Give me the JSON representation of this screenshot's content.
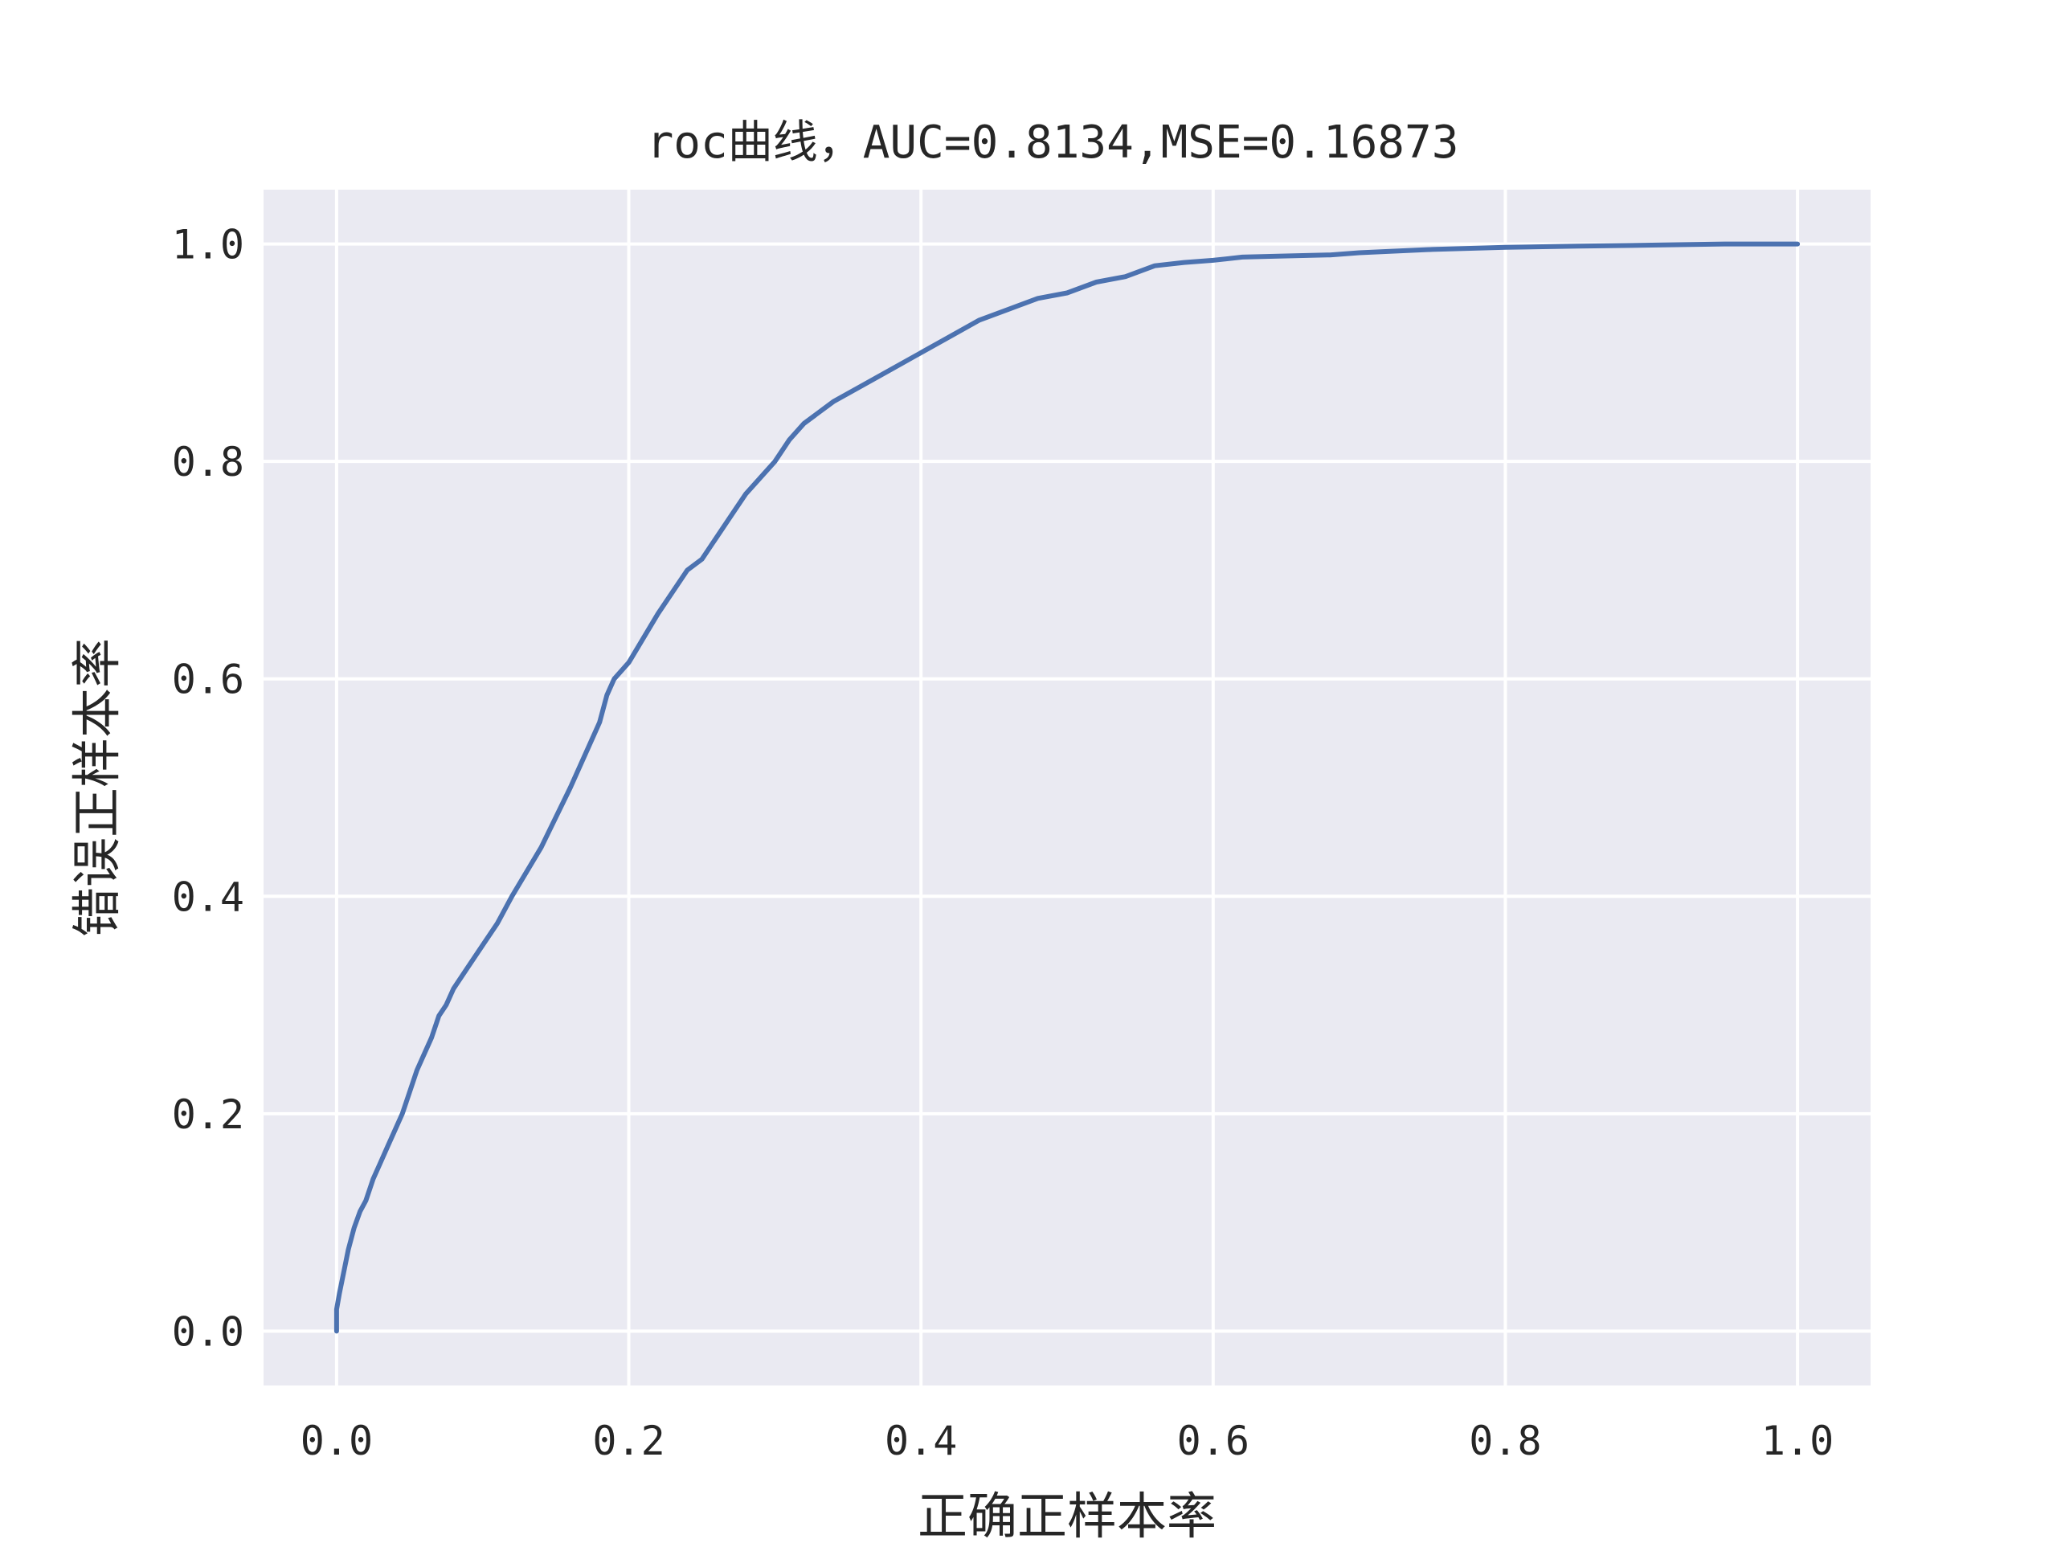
{
  "chart_data": {
    "type": "line",
    "title": "roc曲线，AUC=0.8134,MSE=0.16873",
    "xlabel": "正确正样本率",
    "ylabel": "错误正样本率",
    "xlim": [
      -0.05,
      1.05
    ],
    "ylim": [
      -0.05,
      1.05
    ],
    "xticks": [
      0.0,
      0.2,
      0.4,
      0.6,
      0.8,
      1.0
    ],
    "xtick_labels": [
      "0.0",
      "0.2",
      "0.4",
      "0.6",
      "0.8",
      "1.0"
    ],
    "yticks": [
      0.0,
      0.2,
      0.4,
      0.6,
      0.8,
      1.0
    ],
    "ytick_labels": [
      "0.0",
      "0.2",
      "0.4",
      "0.6",
      "0.8",
      "1.0"
    ],
    "grid": true,
    "legend": "none",
    "colors": {
      "background": "#eaeaf2",
      "grid": "#ffffff",
      "line": "#4c72b0"
    },
    "series": [
      {
        "x": [
          0.0,
          0.0,
          0.002,
          0.005,
          0.008,
          0.012,
          0.016,
          0.02,
          0.025,
          0.03,
          0.035,
          0.04,
          0.045,
          0.05,
          0.055,
          0.06,
          0.065,
          0.07,
          0.075,
          0.08,
          0.09,
          0.1,
          0.11,
          0.12,
          0.14,
          0.16,
          0.175,
          0.18,
          0.185,
          0.19,
          0.2,
          0.22,
          0.24,
          0.25,
          0.26,
          0.27,
          0.28,
          0.3,
          0.31,
          0.32,
          0.34,
          0.36,
          0.38,
          0.4,
          0.42,
          0.44,
          0.46,
          0.48,
          0.5,
          0.52,
          0.54,
          0.56,
          0.58,
          0.6,
          0.62,
          0.65,
          0.68,
          0.7,
          0.75,
          0.8,
          0.85,
          0.9,
          0.95,
          1.0
        ],
        "y": [
          0.0,
          0.02,
          0.035,
          0.055,
          0.075,
          0.095,
          0.11,
          0.12,
          0.14,
          0.155,
          0.17,
          0.185,
          0.2,
          0.22,
          0.24,
          0.255,
          0.27,
          0.29,
          0.3,
          0.315,
          0.335,
          0.355,
          0.375,
          0.4,
          0.445,
          0.5,
          0.545,
          0.56,
          0.585,
          0.6,
          0.615,
          0.66,
          0.7,
          0.71,
          0.73,
          0.75,
          0.77,
          0.8,
          0.82,
          0.835,
          0.855,
          0.87,
          0.885,
          0.9,
          0.915,
          0.93,
          0.94,
          0.95,
          0.955,
          0.965,
          0.97,
          0.98,
          0.983,
          0.985,
          0.988,
          0.989,
          0.99,
          0.992,
          0.995,
          0.997,
          0.998,
          0.999,
          1.0,
          1.0
        ]
      }
    ]
  }
}
